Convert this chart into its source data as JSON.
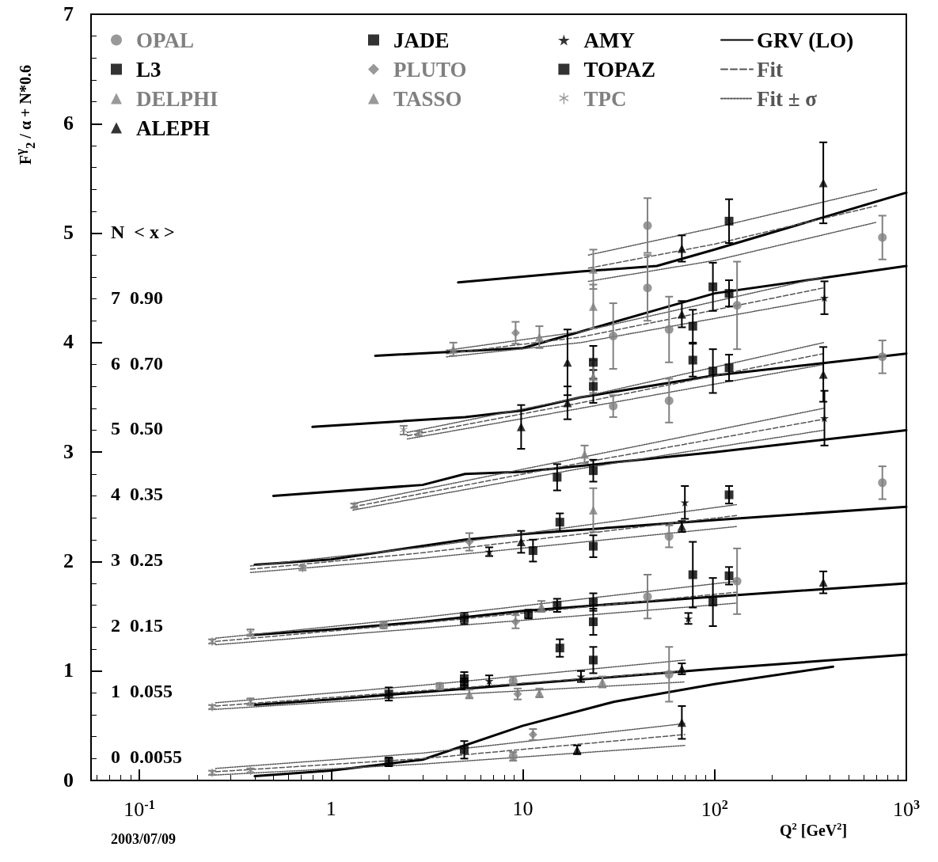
{
  "chart_data": {
    "type": "scatter",
    "xlabel": "Q$^{2}$ [GeV$^{2}$]",
    "ylabel": "F$^{γ}$$_{2}$ / α + N*0.6",
    "log": "x",
    "xlim": [
      0.056,
      1000
    ],
    "xticks": [
      {
        "value": 0.1,
        "label": "10$^{-1}$"
      },
      1,
      10,
      {
        "value": 100,
        "label": "10$^{2}$"
      },
      {
        "value": 1000,
        "label": "10$^{3}$"
      }
    ],
    "ylim": [
      0,
      7
    ],
    "yticks": [
      0,
      1,
      2,
      3,
      4,
      5,
      6,
      7
    ],
    "grid": false,
    "legend": "top",
    "annotations": [
      "N  < x >",
      "7  0.90",
      "6  0.70",
      "5  0.50",
      "4  0.35",
      "3  0.25",
      "2  0.15",
      "1  0.055",
      "0  0.0055",
      "2003/07/09"
    ],
    "series": [
      {
        "name": "OPAL",
        "marker": "circle",
        "color": "#808080",
        "x": [
          44.7,
          44.7,
          29.6,
          57.9,
          57.9,
          29.6,
          750,
          750,
          750,
          57.9,
          44.7,
          57.9,
          1.88,
          3.69,
          8.9,
          8.9,
          131,
          131
        ],
        "values": [
          5.07,
          4.5,
          4.06,
          4.12,
          3.47,
          3.42,
          4.96,
          3.87,
          2.72,
          2.23,
          1.68,
          0.97,
          1.42,
          0.86,
          0.91,
          0.22,
          1.82,
          4.34
        ],
        "errors": [
          0.25,
          0.3,
          0.3,
          0.3,
          0.2,
          0.1,
          0.2,
          0.15,
          0.15,
          0.1,
          0.2,
          0.25,
          0.03,
          0.03,
          0.04,
          0.04,
          0.3,
          0.4
        ]
      },
      {
        "name": "L3",
        "marker": "square",
        "color": "#000000",
        "x": [
          4.95,
          2.0,
          2.0,
          4.95,
          4.95,
          10.7,
          15.1,
          23.3,
          23.3,
          15.1,
          23.3,
          23.3
        ],
        "values": [
          0.88,
          0.79,
          0.17,
          0.28,
          1.48,
          1.52,
          1.6,
          1.63,
          2.83,
          2.77,
          3.82,
          3.6
        ],
        "errors": [
          0.05,
          0.06,
          0.04,
          0.08,
          0.05,
          0.04,
          0.06,
          0.08,
          0.1,
          0.12,
          0.15,
          0.15
        ]
      },
      {
        "name": "DELPHI",
        "marker": "triangle",
        "color": "#808080",
        "x": [
          23.3,
          23.3,
          23.3,
          23.3,
          5.26,
          26
        ],
        "values": [
          4.67,
          4.33,
          3.69,
          2.47,
          0.79,
          0.9
        ],
        "errors": [
          0.18,
          0.2,
          0.15,
          0.2,
          0.04,
          0.05
        ]
      },
      {
        "name": "ALEPH",
        "marker": "triangle",
        "color": "#000000",
        "x": [
          369,
          67.5,
          67.5,
          369,
          17.1,
          9.8,
          17.1,
          67.5,
          67.5,
          67.5,
          19.2,
          9.8,
          369
        ],
        "values": [
          5.46,
          4.86,
          4.26,
          3.71,
          3.82,
          3.23,
          3.45,
          2.32,
          1.02,
          0.53,
          0.28,
          2.18,
          1.81
        ],
        "errors": [
          0.37,
          0.12,
          0.12,
          0.25,
          0.3,
          0.2,
          0.15,
          0.05,
          0.05,
          0.15,
          0.04,
          0.1,
          0.1
        ]
      },
      {
        "name": "JADE",
        "marker": "square",
        "color": "#000000",
        "x": [
          11.3,
          23.3,
          98,
          98,
          98,
          23.3,
          23.3
        ],
        "values": [
          2.1,
          2.14,
          1.63,
          3.74,
          4.51,
          1.45,
          1.1
        ],
        "errors": [
          0.1,
          0.1,
          0.22,
          0.2,
          0.22,
          0.12,
          0.12
        ]
      },
      {
        "name": "PLUTO",
        "marker": "diamond",
        "color": "#808080",
        "x": [
          9.17,
          9.17,
          9.4,
          11.3,
          5.26
        ],
        "values": [
          4.09,
          1.45,
          0.79,
          0.42,
          2.18
        ],
        "errors": [
          0.1,
          0.06,
          0.05,
          0.05,
          0.08
        ]
      },
      {
        "name": "TASSO",
        "marker": "triangle",
        "color": "#808080",
        "x": [
          4.34,
          12.2,
          21,
          12.2,
          12.5
        ],
        "values": [
          3.94,
          4.05,
          2.98,
          0.8,
          1.59
        ],
        "errors": [
          0.06,
          0.1,
          0.08,
          0.04,
          0.05
        ]
      },
      {
        "name": "AMY",
        "marker": "star",
        "color": "#000000",
        "x": [
          374,
          374,
          70,
          6.68,
          6.68,
          20.1,
          73
        ],
        "values": [
          4.41,
          3.31,
          2.54,
          2.09,
          0.91,
          0.95,
          1.48
        ],
        "errors": [
          0.15,
          0.25,
          0.15,
          0.04,
          0.05,
          0.05,
          0.05
        ]
      },
      {
        "name": "TOPAZ",
        "marker": "square",
        "color": "#000000",
        "x": [
          119,
          119,
          77,
          77,
          119,
          119,
          77,
          119,
          15.6,
          15.6,
          4.95
        ],
        "values": [
          5.11,
          4.45,
          4.15,
          3.84,
          3.77,
          2.61,
          1.88,
          1.87,
          1.21,
          2.36,
          0.93
        ],
        "errors": [
          0.2,
          0.12,
          0.15,
          0.15,
          0.12,
          0.08,
          0.3,
          0.08,
          0.08,
          0.08,
          0.06
        ]
      },
      {
        "name": "TPC",
        "marker": "cross",
        "color": "#808080",
        "x": [
          0.24,
          0.38,
          0.24,
          0.38,
          0.24,
          0.38,
          0.71,
          1.32,
          2.39,
          2.87
        ],
        "values": [
          0.07,
          0.09,
          0.67,
          0.72,
          1.27,
          1.35,
          1.94,
          2.51,
          3.2,
          3.17
        ],
        "errors": [
          0.02,
          0.02,
          0.02,
          0.03,
          0.02,
          0.03,
          0.02,
          0.02,
          0.04,
          0.02
        ]
      },
      {
        "name": "GRV (LO)",
        "type": "line",
        "marker": "none",
        "line_style": "solid",
        "color": "#000000",
        "x": [
          0.4,
          1,
          3,
          10,
          30,
          100,
          415,
          null,
          0.4,
          1,
          10,
          100,
          1000,
          null,
          0.4,
          1,
          3,
          10,
          100,
          1000,
          null,
          0.4,
          1,
          5,
          10,
          100,
          1000,
          null,
          0.5,
          3,
          5,
          10,
          100,
          1000,
          null,
          0.8,
          5,
          10,
          20,
          100,
          1000,
          null,
          1.7,
          10,
          20,
          50,
          100,
          1000,
          null,
          4.6,
          20,
          50,
          100,
          1000
        ],
        "values": [
          0.04,
          0.09,
          0.19,
          0.5,
          0.72,
          0.88,
          1.04,
          null,
          0.69,
          0.74,
          0.88,
          1.02,
          1.15,
          null,
          1.33,
          1.38,
          1.45,
          1.55,
          1.68,
          1.8,
          null,
          1.97,
          2.02,
          2.2,
          2.25,
          2.38,
          2.5,
          null,
          2.6,
          2.7,
          2.8,
          2.82,
          3.0,
          3.2,
          null,
          3.23,
          3.32,
          3.38,
          3.5,
          3.7,
          3.9,
          null,
          3.88,
          3.95,
          4.1,
          4.3,
          4.45,
          4.7,
          null,
          4.55,
          4.65,
          4.7,
          4.85,
          5.37
        ]
      },
      {
        "name": "Fit",
        "type": "line",
        "marker": "none",
        "line_style": "dashed",
        "color": "#555555",
        "x": [
          0.25,
          3,
          70,
          null,
          0.25,
          3,
          70,
          null,
          0.25,
          3,
          130,
          null,
          0.38,
          3,
          130,
          null,
          1.3,
          20,
          370,
          null,
          2.5,
          20,
          370,
          null,
          4,
          20,
          370,
          null,
          22,
          100,
          700
        ],
        "values": [
          0.08,
          0.2,
          0.42,
          null,
          0.68,
          0.82,
          1.0,
          null,
          1.27,
          1.44,
          1.72,
          null,
          1.93,
          2.08,
          2.42,
          null,
          2.5,
          2.9,
          3.3,
          null,
          3.15,
          3.45,
          3.9,
          null,
          3.9,
          4.05,
          4.5,
          null,
          4.68,
          4.9,
          5.25
        ]
      },
      {
        "name": "Fit ± σ",
        "type": "line",
        "marker": "none",
        "line_style": "dotted",
        "color": "#555555",
        "x": [
          0.25,
          3,
          70,
          null,
          0.25,
          3,
          70,
          null,
          0.25,
          3,
          70,
          null,
          0.25,
          3,
          70,
          null,
          0.25,
          3,
          130,
          null,
          0.25,
          3,
          130,
          null,
          0.38,
          3,
          130,
          null,
          0.38,
          3,
          130,
          null,
          1.3,
          20,
          370,
          null,
          1.3,
          20,
          370,
          null,
          2.5,
          20,
          370,
          null,
          2.5,
          20,
          370,
          null,
          4,
          20,
          370,
          null,
          4,
          20,
          370,
          null,
          22,
          100,
          700,
          null,
          22,
          100,
          700
        ],
        "values": [
          0.11,
          0.25,
          0.52,
          null,
          0.05,
          0.15,
          0.32,
          null,
          0.71,
          0.87,
          1.1,
          null,
          0.65,
          0.77,
          0.9,
          null,
          1.3,
          1.49,
          1.82,
          null,
          1.24,
          1.39,
          1.62,
          null,
          1.96,
          2.13,
          2.52,
          null,
          1.9,
          2.03,
          2.32,
          null,
          2.53,
          2.95,
          3.4,
          null,
          2.47,
          2.85,
          3.2,
          null,
          3.18,
          3.5,
          4.0,
          null,
          3.12,
          3.4,
          3.8,
          null,
          3.93,
          4.1,
          4.6,
          null,
          3.87,
          4.0,
          4.4,
          null,
          4.8,
          5.05,
          5.4,
          null,
          4.56,
          4.75,
          5.1
        ]
      }
    ]
  }
}
